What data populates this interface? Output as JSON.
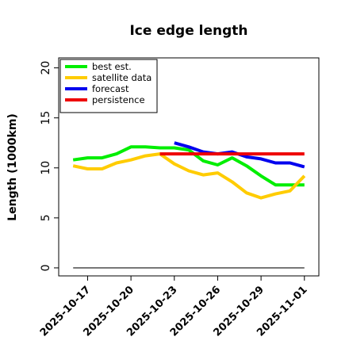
{
  "chart_data": {
    "type": "line",
    "title": "Ice edge length",
    "xlabel": "",
    "ylabel": "Length (1000km)",
    "ylim": [
      -0.8,
      21
    ],
    "xlim": [
      "2025-10-15",
      "2025-11-02"
    ],
    "yticks": [
      "0",
      "5",
      "10",
      "15",
      "20"
    ],
    "xticks": [
      {
        "label": "2025-10-17",
        "date": "2025-10-17",
        "color": "#000000"
      },
      {
        "label": "2025-10-20",
        "date": "2025-10-20",
        "color": "#000000"
      },
      {
        "label": "2025-10-23",
        "date": "2025-10-23",
        "color": "#2a8a2a"
      },
      {
        "label": "2025-10-26",
        "date": "2025-10-26",
        "color": "#000000"
      },
      {
        "label": "2025-10-29",
        "date": "2025-10-29",
        "color": "#000000"
      },
      {
        "label": "2025-11-01",
        "date": "2025-11-01",
        "color": "#000000"
      }
    ],
    "legend_position": "top-left",
    "series": [
      {
        "name": "best est.",
        "color": "#00ee00",
        "x": [
          "2025-10-16",
          "2025-10-17",
          "2025-10-18",
          "2025-10-19",
          "2025-10-20",
          "2025-10-21",
          "2025-10-22",
          "2025-10-23",
          "2025-10-24",
          "2025-10-25",
          "2025-10-26",
          "2025-10-27",
          "2025-10-28",
          "2025-10-29",
          "2025-10-30",
          "2025-10-31",
          "2025-11-01"
        ],
        "y": [
          10.8,
          11.0,
          11.0,
          11.4,
          12.1,
          12.1,
          12.0,
          12.0,
          11.8,
          10.7,
          10.3,
          11.0,
          10.2,
          9.2,
          8.3,
          8.3,
          8.3
        ]
      },
      {
        "name": "satellite data",
        "color": "#ffcc00",
        "x": [
          "2025-10-16",
          "2025-10-17",
          "2025-10-18",
          "2025-10-19",
          "2025-10-20",
          "2025-10-21",
          "2025-10-22",
          "2025-10-23",
          "2025-10-24",
          "2025-10-25",
          "2025-10-26",
          "2025-10-27",
          "2025-10-28",
          "2025-10-29",
          "2025-10-30",
          "2025-10-31",
          "2025-11-01"
        ],
        "y": [
          10.2,
          9.9,
          9.9,
          10.5,
          10.8,
          11.2,
          11.4,
          10.4,
          9.7,
          9.3,
          9.5,
          8.6,
          7.5,
          7.0,
          7.4,
          7.7,
          9.2
        ]
      },
      {
        "name": "forecast",
        "color": "#0000ee",
        "x": [
          "2025-10-23",
          "2025-10-24",
          "2025-10-25",
          "2025-10-26",
          "2025-10-27",
          "2025-10-28",
          "2025-10-29",
          "2025-10-30",
          "2025-10-31",
          "2025-11-01"
        ],
        "y": [
          12.5,
          12.1,
          11.6,
          11.4,
          11.6,
          11.1,
          10.9,
          10.5,
          10.5,
          10.1
        ]
      },
      {
        "name": "persistence",
        "color": "#ee0000",
        "x": [
          "2025-10-22",
          "2025-10-23",
          "2025-10-24",
          "2025-10-25",
          "2025-10-26",
          "2025-10-27",
          "2025-10-28",
          "2025-10-29",
          "2025-10-30",
          "2025-10-31",
          "2025-11-01"
        ],
        "y": [
          11.4,
          11.4,
          11.4,
          11.4,
          11.4,
          11.4,
          11.4,
          11.4,
          11.4,
          11.4,
          11.4
        ]
      }
    ],
    "reference_line": {
      "y": 0,
      "x_from": "2025-10-16",
      "x_to": "2025-11-01",
      "color": "#666666"
    }
  }
}
